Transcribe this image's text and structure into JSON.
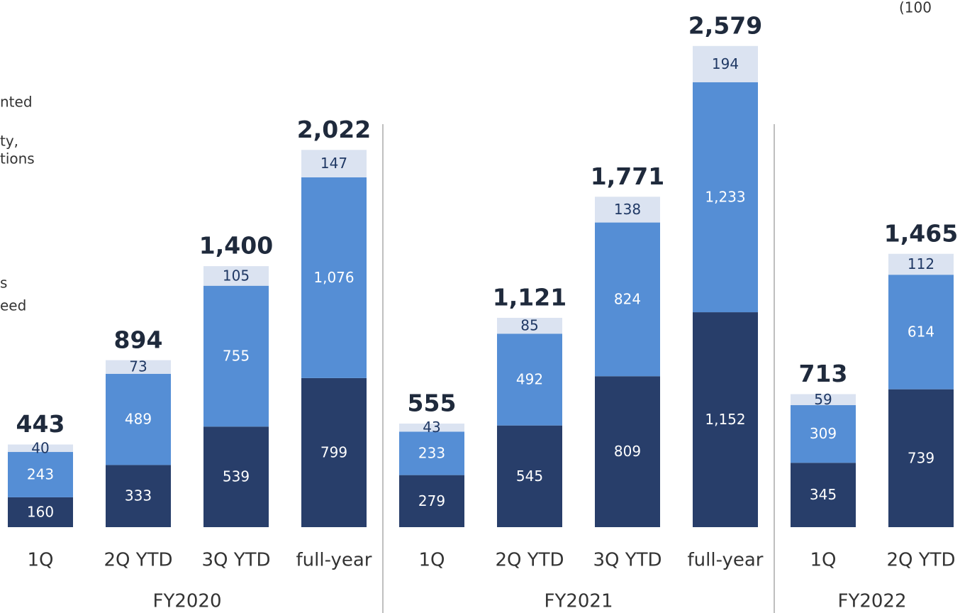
{
  "chart_data": {
    "type": "stacked_bar",
    "categories": [
      "1Q",
      "2Q YTD",
      "3Q YTD",
      "full-year",
      "1Q",
      "2Q YTD",
      "3Q YTD",
      "full-year",
      "1Q",
      "2Q YTD"
    ],
    "groups": [
      {
        "label": "FY2020",
        "count": 4
      },
      {
        "label": "FY2021",
        "count": 4
      },
      {
        "label": "FY2022",
        "count": 2
      }
    ],
    "series": [
      {
        "color": "#283e6a",
        "label_color": "#ffffff",
        "values": [
          160,
          333,
          539,
          799,
          279,
          545,
          809,
          1152,
          345,
          739
        ],
        "value_labels": [
          "160",
          "333",
          "539",
          "799",
          "279",
          "545",
          "809",
          "1,152",
          "345",
          "739"
        ]
      },
      {
        "color": "#558ed5",
        "label_color": "#ffffff",
        "values": [
          243,
          489,
          755,
          1076,
          233,
          492,
          824,
          1233,
          309,
          614
        ],
        "value_labels": [
          "243",
          "489",
          "755",
          "1,076",
          "233",
          "492",
          "824",
          "1,233",
          "309",
          "614"
        ]
      },
      {
        "color": "#dbe3f1",
        "label_color": "#1f3864",
        "values": [
          40,
          73,
          105,
          147,
          43,
          85,
          138,
          194,
          59,
          112
        ],
        "value_labels": [
          "40",
          "73",
          "105",
          "147",
          "43",
          "85",
          "138",
          "194",
          "59",
          "112"
        ]
      }
    ],
    "totals": [
      443,
      894,
      1400,
      2022,
      555,
      1121,
      1771,
      2579,
      713,
      1465
    ],
    "total_labels": [
      "443",
      "894",
      "1,400",
      "2,022",
      "555",
      "1,121",
      "1,771",
      "2,579",
      "713",
      "1,465"
    ],
    "ylim": [
      0,
      2700
    ],
    "legend_fragments": [
      "nted",
      "ty,",
      "tions",
      "s",
      "eed"
    ],
    "unit_fragment": "(100"
  }
}
